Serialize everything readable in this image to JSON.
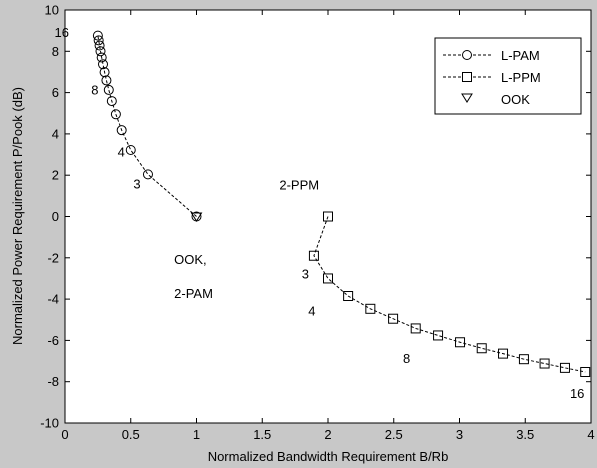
{
  "chart_data": {
    "type": "line",
    "title": "",
    "xlabel": "Normalized Bandwidth Requirement B/Rb",
    "ylabel": "Normalized Power Requirement P/Pook (dB)",
    "xlim": [
      0,
      4
    ],
    "ylim": [
      -10,
      10
    ],
    "xticks": [
      "0",
      "0.5",
      "1",
      "1.5",
      "2",
      "2.5",
      "3",
      "3.5",
      "4"
    ],
    "yticks": [
      "10",
      "8",
      "6",
      "4",
      "2",
      "0",
      "-2",
      "-4",
      "-6",
      "-8",
      "-10"
    ],
    "grid": false,
    "legend": "top-right",
    "series": [
      {
        "name": "L-PAM",
        "marker": "circle",
        "x": [
          1.0,
          0.631,
          0.5,
          0.431,
          0.387,
          0.356,
          0.333,
          0.315,
          0.301,
          0.289,
          0.279,
          0.27,
          0.263,
          0.256,
          0.25
        ],
        "y": [
          0.0,
          2.04,
          3.22,
          4.18,
          4.95,
          5.59,
          6.13,
          6.59,
          6.99,
          7.37,
          7.7,
          8.0,
          8.28,
          8.53,
          8.76
        ]
      },
      {
        "name": "L-PPM",
        "marker": "square",
        "x": [
          2.0,
          1.893,
          2.0,
          2.153,
          2.322,
          2.495,
          2.667,
          2.837,
          3.004,
          3.169,
          3.331,
          3.49,
          3.647,
          3.802,
          3.956
        ],
        "y": [
          0.0,
          -1.9,
          -3.0,
          -3.85,
          -4.47,
          -4.95,
          -5.42,
          -5.76,
          -6.09,
          -6.38,
          -6.64,
          -6.91,
          -7.12,
          -7.33,
          -7.53
        ]
      },
      {
        "name": "OOK",
        "marker": "triangle-down",
        "x": [
          1.0
        ],
        "y": [
          0.0
        ]
      }
    ],
    "annotations": [
      {
        "text": "16",
        "x": -0.08,
        "y": 8.7
      },
      {
        "text": "8",
        "x": 0.2,
        "y": 5.9
      },
      {
        "text": "4",
        "x": 0.4,
        "y": 2.9
      },
      {
        "text": "3",
        "x": 0.52,
        "y": 1.35
      },
      {
        "text": "OOK,",
        "x": 0.83,
        "y": -2.3
      },
      {
        "text": "2-PAM",
        "x": 0.83,
        "y": -3.95
      },
      {
        "text": "2-PPM",
        "x": 1.63,
        "y": 1.3
      },
      {
        "text": "3",
        "x": 1.8,
        "y": -3.0
      },
      {
        "text": "4",
        "x": 1.85,
        "y": -4.8
      },
      {
        "text": "8",
        "x": 2.57,
        "y": -7.1
      },
      {
        "text": "16",
        "x": 3.84,
        "y": -8.8
      }
    ]
  }
}
